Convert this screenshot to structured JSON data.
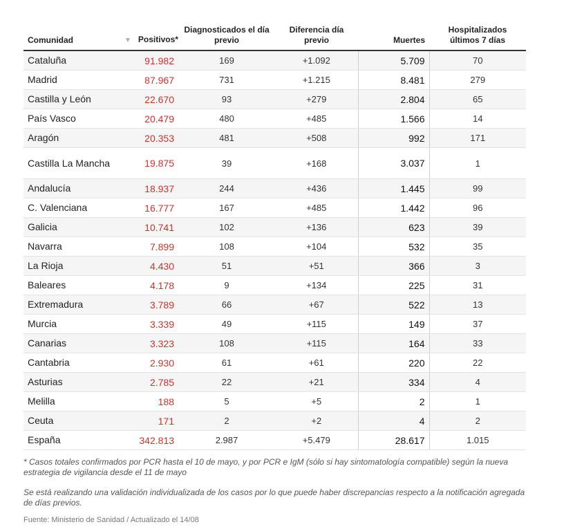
{
  "table": {
    "headers": {
      "comunidad": "Comunidad",
      "positivos": "Positivos*",
      "diagnosticados": "Diagnosticados el día previo",
      "diferencia": "Diferencia día previo",
      "muertes": "Muertes",
      "hospitalizados": "Hospitalizados últimos 7 días",
      "sort_icon": "sort-desc-icon"
    },
    "rows": [
      {
        "comunidad": "Cataluña",
        "positivos": "91.982",
        "diagnosticados": "169",
        "diferencia": "+1.092",
        "muertes": "5.709",
        "hospitalizados": "70"
      },
      {
        "comunidad": "Madrid",
        "positivos": "87.967",
        "diagnosticados": "731",
        "diferencia": "+1.215",
        "muertes": "8.481",
        "hospitalizados": "279"
      },
      {
        "comunidad": "Castilla y León",
        "positivos": "22.670",
        "diagnosticados": "93",
        "diferencia": "+279",
        "muertes": "2.804",
        "hospitalizados": "65"
      },
      {
        "comunidad": "País Vasco",
        "positivos": "20.479",
        "diagnosticados": "480",
        "diferencia": "+485",
        "muertes": "1.566",
        "hospitalizados": "14"
      },
      {
        "comunidad": "Aragón",
        "positivos": "20.353",
        "diagnosticados": "481",
        "diferencia": "+508",
        "muertes": "992",
        "hospitalizados": "171"
      },
      {
        "comunidad": "Castilla La Mancha",
        "positivos": "19.875",
        "diagnosticados": "39",
        "diferencia": "+168",
        "muertes": "3.037",
        "hospitalizados": "1"
      },
      {
        "comunidad": "Andalucía",
        "positivos": "18.937",
        "diagnosticados": "244",
        "diferencia": "+436",
        "muertes": "1.445",
        "hospitalizados": "99"
      },
      {
        "comunidad": "C. Valenciana",
        "positivos": "16.777",
        "diagnosticados": "167",
        "diferencia": "+485",
        "muertes": "1.442",
        "hospitalizados": "96"
      },
      {
        "comunidad": "Galicia",
        "positivos": "10.741",
        "diagnosticados": "102",
        "diferencia": "+136",
        "muertes": "623",
        "hospitalizados": "39"
      },
      {
        "comunidad": "Navarra",
        "positivos": "7.899",
        "diagnosticados": "108",
        "diferencia": "+104",
        "muertes": "532",
        "hospitalizados": "35"
      },
      {
        "comunidad": "La Rioja",
        "positivos": "4.430",
        "diagnosticados": "51",
        "diferencia": "+51",
        "muertes": "366",
        "hospitalizados": "3"
      },
      {
        "comunidad": "Baleares",
        "positivos": "4.178",
        "diagnosticados": "9",
        "diferencia": "+134",
        "muertes": "225",
        "hospitalizados": "31"
      },
      {
        "comunidad": "Extremadura",
        "positivos": "3.789",
        "diagnosticados": "66",
        "diferencia": "+67",
        "muertes": "522",
        "hospitalizados": "13"
      },
      {
        "comunidad": "Murcia",
        "positivos": "3.339",
        "diagnosticados": "49",
        "diferencia": "+115",
        "muertes": "149",
        "hospitalizados": "37"
      },
      {
        "comunidad": "Canarias",
        "positivos": "3.323",
        "diagnosticados": "108",
        "diferencia": "+115",
        "muertes": "164",
        "hospitalizados": "33"
      },
      {
        "comunidad": "Cantabria",
        "positivos": "2.930",
        "diagnosticados": "61",
        "diferencia": "+61",
        "muertes": "220",
        "hospitalizados": "22"
      },
      {
        "comunidad": "Asturias",
        "positivos": "2.785",
        "diagnosticados": "22",
        "diferencia": "+21",
        "muertes": "334",
        "hospitalizados": "4"
      },
      {
        "comunidad": "Melilla",
        "positivos": "188",
        "diagnosticados": "5",
        "diferencia": "+5",
        "muertes": "2",
        "hospitalizados": "1"
      },
      {
        "comunidad": "Ceuta",
        "positivos": "171",
        "diagnosticados": "2",
        "diferencia": "+2",
        "muertes": "4",
        "hospitalizados": "2"
      },
      {
        "comunidad": "España",
        "positivos": "342.813",
        "diagnosticados": "2.987",
        "diferencia": "+5.479",
        "muertes": "28.617",
        "hospitalizados": "1.015"
      }
    ]
  },
  "notes": {
    "note1": "* Casos totales confirmados por PCR hasta el 10 de mayo, y por PCR e IgM (sólo si hay sintomatología compatible) según la nueva estrategia de vigilancia desde el 11 de mayo",
    "note2": "Se está realizando una validación individualizada de los casos por lo que puede haber discrepancias respecto a la notificación agregada de días previos.",
    "source": "Fuente: Ministerio de Sanidad / Actualizado el 14/08"
  },
  "colors": {
    "positivos": "#d0312d",
    "row_stripe": "#f5f5f5"
  }
}
